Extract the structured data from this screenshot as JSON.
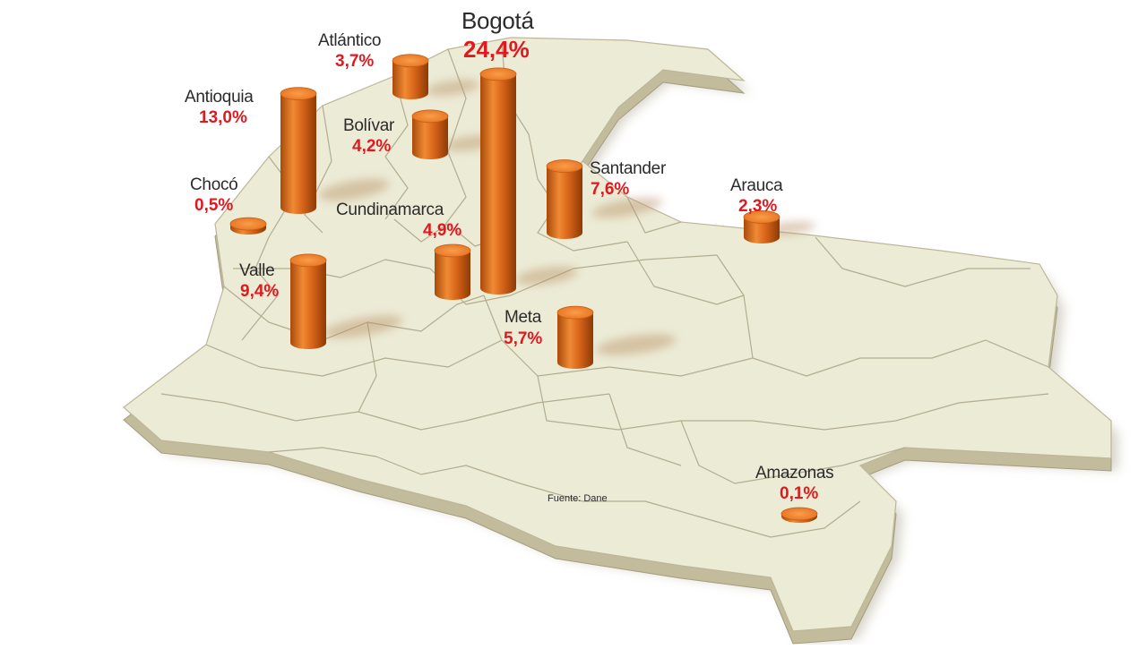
{
  "colors": {
    "land": "#ecebd6",
    "land_edge": "#b4ae8b",
    "border": "#b3ad90",
    "cylinder": "#d96a14",
    "cylinder_top": "#f58a33",
    "percent_text": "#e0191f",
    "name_text": "#2b2b2b"
  },
  "source": "Fuente: Dane",
  "regions": [
    {
      "id": "bogota",
      "name": "Bogotá",
      "value_label": "24,4%",
      "value": 24.4
    },
    {
      "id": "atlantico",
      "name": "Atlántico",
      "value_label": "3,7%",
      "value": 3.7
    },
    {
      "id": "antioquia",
      "name": "Antioquia",
      "value_label": "13,0%",
      "value": 13.0
    },
    {
      "id": "bolivar",
      "name": "Bolívar",
      "value_label": "4,2%",
      "value": 4.2
    },
    {
      "id": "choco",
      "name": "Chocó",
      "value_label": "0,5%",
      "value": 0.5
    },
    {
      "id": "santander",
      "name": "Santander",
      "value_label": "7,6%",
      "value": 7.6
    },
    {
      "id": "arauca",
      "name": "Arauca",
      "value_label": "2,3%",
      "value": 2.3
    },
    {
      "id": "cundinamarca",
      "name": "Cundinamarca",
      "value_label": "4,9%",
      "value": 4.9
    },
    {
      "id": "valle",
      "name": "Valle",
      "value_label": "9,4%",
      "value": 9.4
    },
    {
      "id": "meta",
      "name": "Meta",
      "value_label": "5,7%",
      "value": 5.7
    },
    {
      "id": "amazonas",
      "name": "Amazonas",
      "value_label": "0,1%",
      "value": 0.1
    }
  ]
}
